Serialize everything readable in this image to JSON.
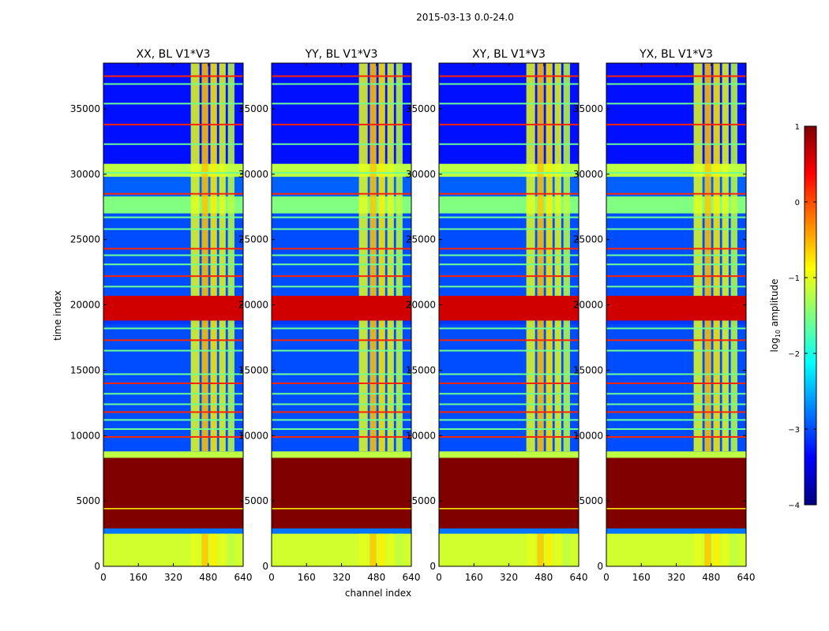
{
  "chart_data": {
    "type": "heatmap",
    "suptitle": "2015-03-13 0.0-24.0",
    "xlabel": "channel index",
    "ylabel": "time index",
    "xlim": [
      0,
      640
    ],
    "ylim": [
      0,
      38500
    ],
    "xticks": [
      0,
      160,
      320,
      480,
      640
    ],
    "yticks": [
      0,
      5000,
      10000,
      15000,
      20000,
      25000,
      30000,
      35000
    ],
    "panels": [
      {
        "title": "XX, BL V1*V3"
      },
      {
        "title": "YY, BL V1*V3"
      },
      {
        "title": "XY, BL V1*V3"
      },
      {
        "title": "YX, BL V1*V3"
      }
    ],
    "colorbar": {
      "label": "log10 amplitude",
      "label_base": "log",
      "label_sub": "10",
      "label_rest": " amplitude",
      "range": [
        -4,
        1
      ],
      "ticks": [
        "1",
        "0",
        "−1",
        "−2",
        "−3",
        "−4"
      ],
      "colormap": "jet"
    },
    "time_bands": [
      {
        "from": 0,
        "to": 2500,
        "value": -1.1,
        "note": "flagged band (light green)"
      },
      {
        "from": 2500,
        "to": 2900,
        "value": -2.8
      },
      {
        "from": 2900,
        "to": 8300,
        "value": 1.0,
        "note": "saturated block (dark red)"
      },
      {
        "from": 8300,
        "to": 8800,
        "value": -1.2
      },
      {
        "from": 8800,
        "to": 18500,
        "value": -3.0
      },
      {
        "from": 18800,
        "to": 20700,
        "value": 0.6,
        "note": "strong RFI band"
      },
      {
        "from": 20700,
        "to": 27000,
        "value": -3.0
      },
      {
        "from": 27000,
        "to": 28300,
        "value": -1.5
      },
      {
        "from": 28300,
        "to": 29800,
        "value": -2.9
      },
      {
        "from": 29800,
        "to": 30800,
        "value": -1.2
      },
      {
        "from": 30800,
        "to": 38500,
        "value": -3.3
      }
    ],
    "channel_bands": [
      {
        "from": 400,
        "to": 440,
        "value": -1.0
      },
      {
        "from": 450,
        "to": 480,
        "value": -0.6
      },
      {
        "from": 490,
        "to": 520,
        "value": -0.8
      },
      {
        "from": 530,
        "to": 560,
        "value": -1.0
      },
      {
        "from": 570,
        "to": 600,
        "value": -1.2
      }
    ]
  }
}
